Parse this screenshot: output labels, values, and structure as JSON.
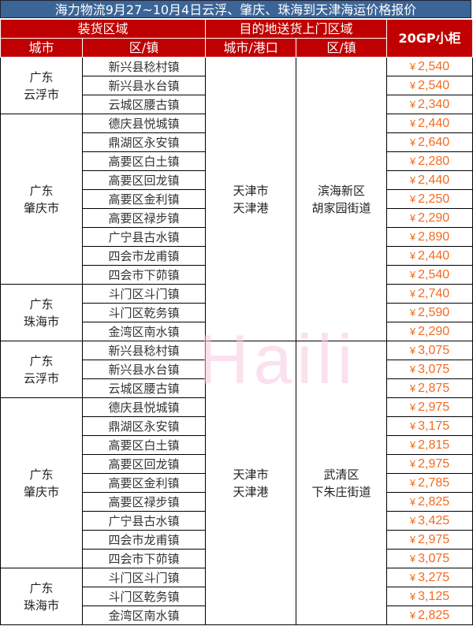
{
  "title": "海力物流9月27~10月4日云浮、肇庆、珠海到天津海运价格报价",
  "header": {
    "loading_area": "装货区域",
    "destination_area": "目的地送货上门区域",
    "price_col": "20GP小柜",
    "city": "城市",
    "town": "区/镇",
    "dest_city": "城市/港口",
    "dest_town": "区/镇"
  },
  "currency_symbol": "¥",
  "colors": {
    "title_bg": "#3b6597",
    "header_bg": "#c00000",
    "price": "#f26b21",
    "watermark": "#f9c8e0"
  },
  "watermark": "Haili",
  "sections": [
    {
      "dest_city": "天津市\n天津港",
      "dest_town": "滨海新区\n胡家园街道",
      "groups": [
        {
          "city": "广东\n云浮市",
          "rows": [
            [
              "新兴县稔村镇",
              "2,540"
            ],
            [
              "新兴县水台镇",
              "2,540"
            ],
            [
              "云城区腰古镇",
              "2,340"
            ]
          ]
        },
        {
          "city": "广东\n肇庆市",
          "rows": [
            [
              "德庆县悦城镇",
              "2,440"
            ],
            [
              "鼎湖区永安镇",
              "2,640"
            ],
            [
              "高要区白土镇",
              "2,280"
            ],
            [
              "高要区回龙镇",
              "2,440"
            ],
            [
              "高要区金利镇",
              "2,250"
            ],
            [
              "高要区禄步镇",
              "2,290"
            ],
            [
              "广宁县古水镇",
              "2,890"
            ],
            [
              "四会市龙甫镇",
              "2,440"
            ],
            [
              "四会市下茆镇",
              "2,540"
            ]
          ]
        },
        {
          "city": "广东\n珠海市",
          "rows": [
            [
              "斗门区斗门镇",
              "2,740"
            ],
            [
              "斗门区乾务镇",
              "2,590"
            ],
            [
              "金湾区南水镇",
              "2,290"
            ]
          ]
        }
      ]
    },
    {
      "dest_city": "天津市\n天津港",
      "dest_town": "武清区\n下朱庄街道",
      "groups": [
        {
          "city": "广东\n云浮市",
          "rows": [
            [
              "新兴县稔村镇",
              "3,075"
            ],
            [
              "新兴县水台镇",
              "3,075"
            ],
            [
              "云城区腰古镇",
              "2,875"
            ]
          ]
        },
        {
          "city": "广东\n肇庆市",
          "rows": [
            [
              "德庆县悦城镇",
              "2,975"
            ],
            [
              "鼎湖区永安镇",
              "3,175"
            ],
            [
              "高要区白土镇",
              "2,815"
            ],
            [
              "高要区回龙镇",
              "2,975"
            ],
            [
              "高要区金利镇",
              "2,785"
            ],
            [
              "高要区禄步镇",
              "2,825"
            ],
            [
              "广宁县古水镇",
              "3,425"
            ],
            [
              "四会市龙甫镇",
              "2,975"
            ],
            [
              "四会市下茆镇",
              "3,075"
            ]
          ]
        },
        {
          "city": "广东\n珠海市",
          "rows": [
            [
              "斗门区斗门镇",
              "3,275"
            ],
            [
              "斗门区乾务镇",
              "3,125"
            ],
            [
              "金湾区南水镇",
              "2,825"
            ]
          ]
        }
      ]
    }
  ]
}
